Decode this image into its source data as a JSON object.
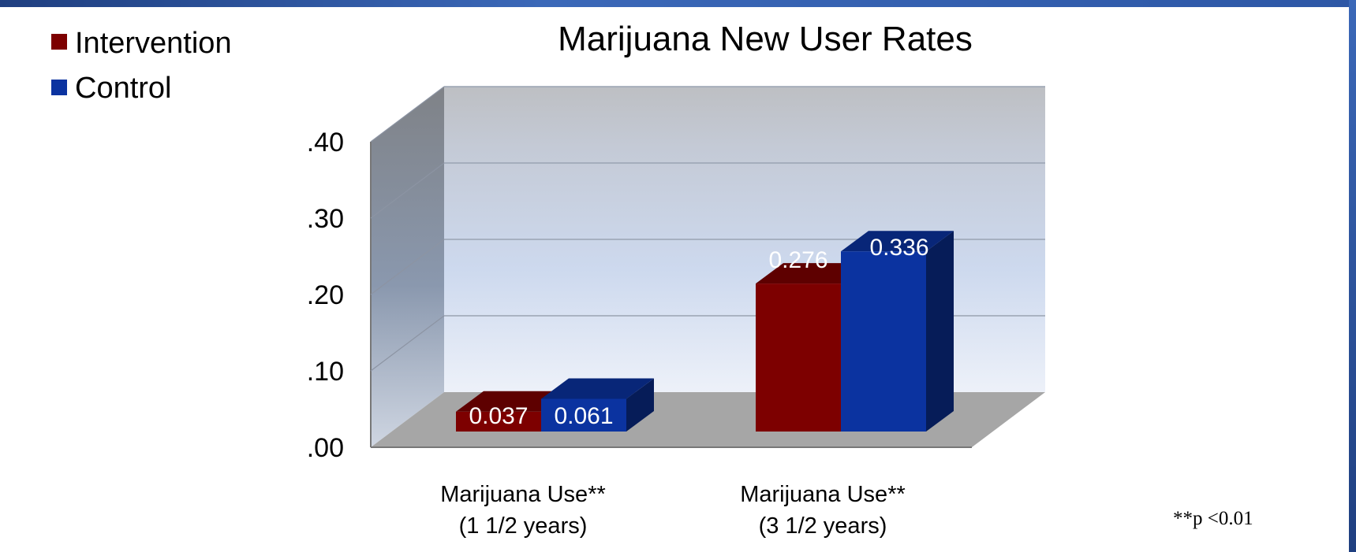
{
  "slide": {
    "footnote": "**p <0.01"
  },
  "chart_data": {
    "type": "bar",
    "title": "Marijuana New User Rates",
    "categories": [
      [
        "Marijuana Use**",
        "(1 1/2 years)"
      ],
      [
        "Marijuana Use**",
        "(3 1/2 years)"
      ]
    ],
    "series": [
      {
        "name": "Intervention",
        "values": [
          0.037,
          0.276
        ],
        "value_labels": [
          "0.037",
          "0.276"
        ],
        "color": "#7d0000"
      },
      {
        "name": "Control",
        "values": [
          0.061,
          0.336
        ],
        "value_labels": [
          "0.061",
          "0.336"
        ],
        "color": "#0b33a0"
      }
    ],
    "yticks": [
      ".00",
      ".10",
      ".20",
      ".30",
      ".40"
    ],
    "ylim": [
      0,
      0.4
    ],
    "grid": true,
    "legend_position": "top-left",
    "style": "3d-clustered-column"
  }
}
